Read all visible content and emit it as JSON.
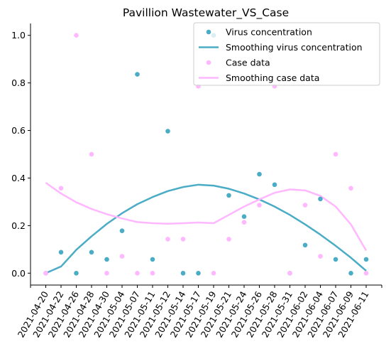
{
  "chart_data": {
    "type": "scatter",
    "title": "Pavillion Wastewater_VS_Case",
    "xlabel": "",
    "ylabel": "",
    "ylim": [
      -0.05,
      1.05
    ],
    "yticks": [
      "0.0",
      "0.2",
      "0.4",
      "0.6",
      "0.8",
      "1.0"
    ],
    "grid": false,
    "legend_position": "top-right",
    "categories": [
      "2021-04-20",
      "2021-04-22",
      "2021-04-26",
      "2021-04-28",
      "2021-04-30",
      "2021-05-04",
      "2021-05-07",
      "2021-05-11",
      "2021-05-12",
      "2021-05-14",
      "2021-05-17",
      "2021-05-19",
      "2021-05-21",
      "2021-05-24",
      "2021-05-26",
      "2021-05-28",
      "2021-05-31",
      "2021-06-02",
      "2021-06-04",
      "2021-06-07",
      "2021-06-09",
      "2021-06-11"
    ],
    "series": [
      {
        "name": "Virus concentration",
        "kind": "scatter",
        "color": "#4bacc6",
        "values": [
          0.0,
          0.088,
          0.0,
          0.088,
          0.058,
          0.178,
          0.836,
          0.058,
          0.597,
          0.0,
          0.0,
          1.0,
          0.327,
          0.238,
          0.416,
          0.372,
          0.0,
          0.118,
          0.312,
          0.058,
          0.0,
          0.058
        ]
      },
      {
        "name": "Smoothing virus concentration",
        "kind": "line",
        "color": "#4bacc6",
        "values": [
          0.0,
          0.028,
          0.098,
          0.155,
          0.207,
          0.252,
          0.29,
          0.32,
          0.345,
          0.362,
          0.372,
          0.368,
          0.355,
          0.335,
          0.31,
          0.28,
          0.245,
          0.205,
          0.162,
          0.115,
          0.065,
          0.01
        ]
      },
      {
        "name": "Case data",
        "kind": "scatter",
        "color": "#ffb8ff",
        "values": [
          0.0,
          0.357,
          1.0,
          0.5,
          0.0,
          0.071,
          0.0,
          0.0,
          0.143,
          0.143,
          0.786,
          0.0,
          0.143,
          0.214,
          0.286,
          0.786,
          0.0,
          0.286,
          0.071,
          0.5,
          0.357,
          0.0
        ]
      },
      {
        "name": "Smoothing case data",
        "kind": "line",
        "color": "#ffb8ff",
        "values": [
          0.38,
          0.335,
          0.298,
          0.27,
          0.248,
          0.23,
          0.215,
          0.21,
          0.208,
          0.21,
          0.213,
          0.21,
          0.245,
          0.28,
          0.31,
          0.338,
          0.352,
          0.348,
          0.325,
          0.28,
          0.205,
          0.095
        ]
      }
    ]
  }
}
